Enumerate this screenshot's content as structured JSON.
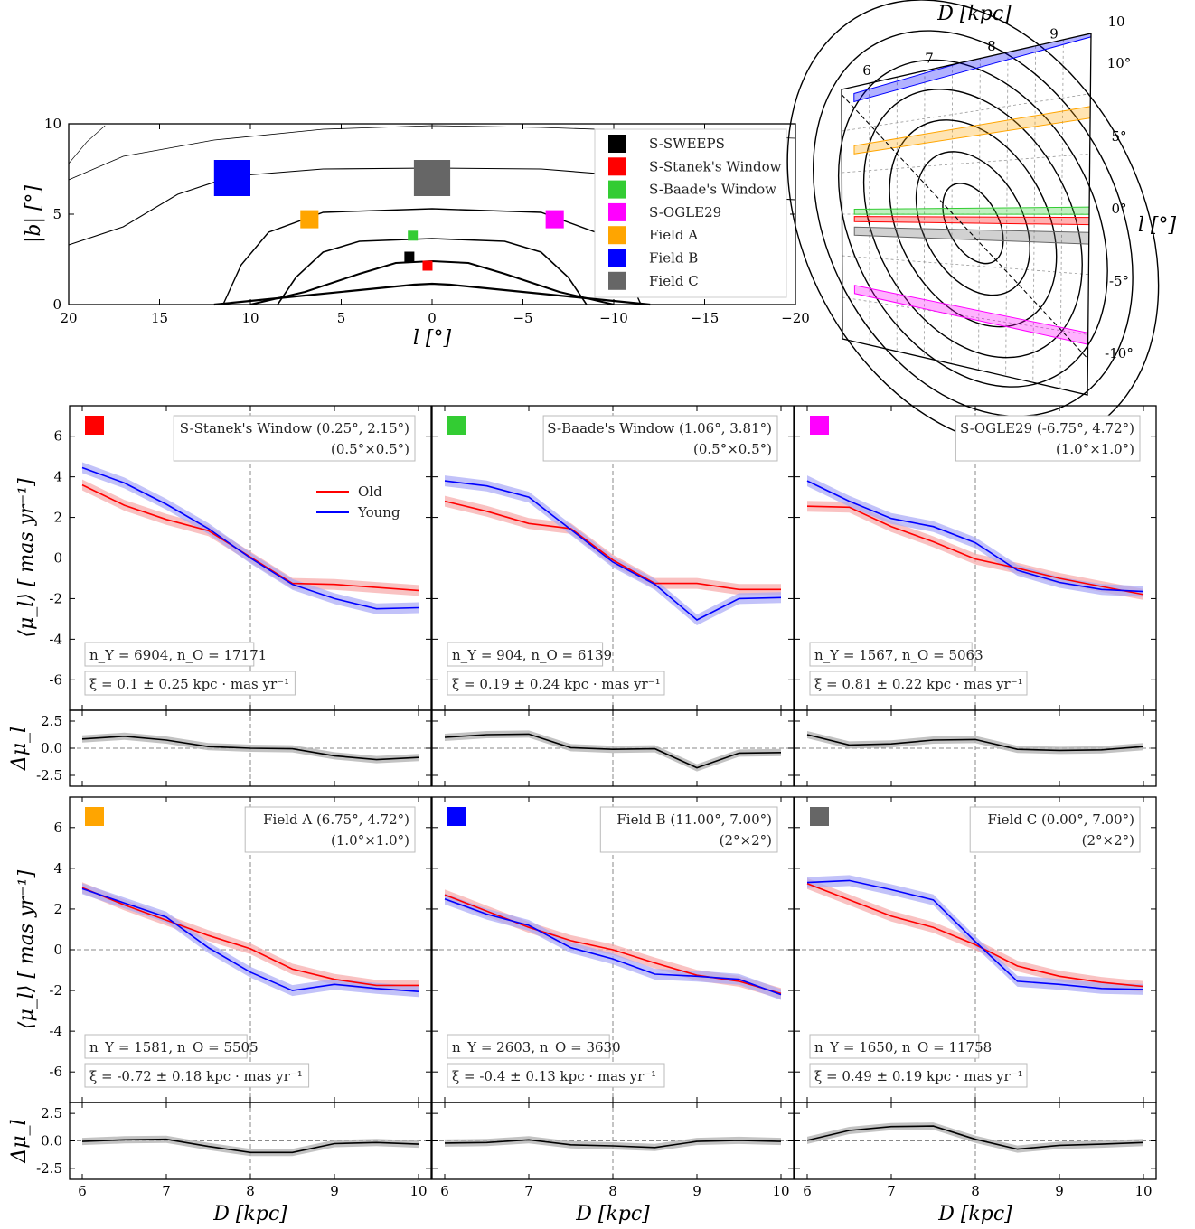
{
  "colors": {
    "old": "#ff0000",
    "young": "#0000ff",
    "diff": "#000000",
    "band_old": "#f7a8a8",
    "band_young": "#a8a8f7",
    "band_diff": "#b4b4b4"
  },
  "chart_data": [
    {
      "id": "map",
      "type": "heatmap",
      "xlabel": "l [°]",
      "ylabel": "|b| [°]",
      "xlim": [
        20,
        -20
      ],
      "ylim": [
        0,
        10
      ],
      "xticks": [
        "20",
        "15",
        "10",
        "5",
        "0",
        "−5",
        "−10",
        "−15",
        "−20"
      ],
      "yticks": [
        "0",
        "5",
        "10"
      ],
      "legend": {
        "placement": "top-right",
        "entries": [
          {
            "label": "S-SWEEPS",
            "color": "#000000"
          },
          {
            "label": "S-Stanek's Window",
            "color": "#ff0000"
          },
          {
            "label": "S-Baade's Window",
            "color": "#33cc33"
          },
          {
            "label": "S-OGLE29",
            "color": "#ff00ff"
          },
          {
            "label": "Field A",
            "color": "#ffa500"
          },
          {
            "label": "Field B",
            "color": "#0000ff"
          },
          {
            "label": "Field C",
            "color": "#666666"
          }
        ]
      },
      "fields": [
        {
          "name": "S-SWEEPS",
          "l": 1.25,
          "b": 2.65,
          "size": 0.5,
          "color": "#000000"
        },
        {
          "name": "S-Stanek's Window",
          "l": 0.25,
          "b": 2.15,
          "size": 0.5,
          "color": "#ff0000"
        },
        {
          "name": "S-Baade's Window",
          "l": 1.06,
          "b": 3.81,
          "size": 0.5,
          "color": "#33cc33"
        },
        {
          "name": "S-OGLE29",
          "l": -6.75,
          "b": 4.72,
          "size": 1.0,
          "color": "#ff00ff"
        },
        {
          "name": "Field A",
          "l": 6.75,
          "b": 4.72,
          "size": 1.0,
          "color": "#ffa500"
        },
        {
          "name": "Field B",
          "l": 11.0,
          "b": 7.0,
          "size": 2.0,
          "color": "#0000ff"
        },
        {
          "name": "Field C",
          "l": 0.0,
          "b": 7.0,
          "size": 2.0,
          "color": "#666666"
        }
      ]
    },
    {
      "id": "projection",
      "type": "diagram",
      "top_label": "D [kpc]",
      "side_label": "l [°]",
      "top_ticks": [
        "6",
        "7",
        "8",
        "9",
        "10"
      ],
      "side_ticks": [
        "10°",
        "5°",
        "0°",
        "-5°",
        "-10°"
      ]
    },
    {
      "id": "panels",
      "type": "line",
      "x": [
        6,
        6.5,
        7,
        7.5,
        8,
        8.5,
        9,
        9.5,
        10
      ],
      "xlabel": "D [kpc]",
      "ylabel_top": "⟨μ_l⟩ [ mas yr⁻¹]",
      "ylabel_bottom": "Δμ_l",
      "ylim_top": [
        -7.5,
        7.5
      ],
      "ylim_bottom": [
        -3.5,
        3.5
      ],
      "legend": [
        "Old",
        "Young"
      ],
      "panels": [
        {
          "title": "S-Stanek's Window (0.25°, 2.15°)",
          "size": "(0.5°×0.5°)",
          "color": "#ff0000",
          "counts": "n_Y = 6904, n_O = 17171",
          "xi": "ξ = 0.1 ± 0.25 kpc · mas yr⁻¹",
          "old": [
            3.6,
            2.6,
            1.9,
            1.35,
            0.05,
            -1.25,
            -1.3,
            -1.45,
            -1.6
          ],
          "young": [
            4.45,
            3.7,
            2.65,
            1.45,
            0.0,
            -1.3,
            -2.0,
            -2.5,
            -2.45
          ],
          "diff": [
            0.85,
            1.1,
            0.75,
            0.15,
            0.0,
            -0.05,
            -0.7,
            -1.05,
            -0.85
          ]
        },
        {
          "title": "S-Baade's Window (1.06°, 3.81°)",
          "size": "(0.5°×0.5°)",
          "color": "#33cc33",
          "counts": "n_Y = 904, n_O = 6139",
          "xi": "ξ = 0.19 ± 0.24 kpc · mas yr⁻¹",
          "old": [
            2.8,
            2.3,
            1.7,
            1.45,
            -0.1,
            -1.25,
            -1.25,
            -1.55,
            -1.55
          ],
          "young": [
            3.8,
            3.55,
            3.0,
            1.4,
            -0.2,
            -1.3,
            -3.05,
            -2.0,
            -1.95
          ],
          "diff": [
            1.0,
            1.25,
            1.3,
            0.05,
            -0.1,
            -0.05,
            -1.8,
            -0.45,
            -0.4
          ]
        },
        {
          "title": "S-OGLE29 (-6.75°, 4.72°)",
          "size": "(1.0°×1.0°)",
          "color": "#ff00ff",
          "counts": "n_Y = 1567, n_O = 5063",
          "xi": "ξ = 0.81 ± 0.22 kpc · mas yr⁻¹",
          "old": [
            2.55,
            2.5,
            1.55,
            0.8,
            -0.05,
            -0.5,
            -1.0,
            -1.4,
            -1.8
          ],
          "young": [
            3.8,
            2.8,
            1.95,
            1.55,
            0.75,
            -0.6,
            -1.2,
            -1.55,
            -1.65
          ],
          "diff": [
            1.25,
            0.3,
            0.4,
            0.75,
            0.8,
            -0.1,
            -0.2,
            -0.15,
            0.15
          ]
        },
        {
          "title": "Field A (6.75°, 4.72°)",
          "size": "(1.0°×1.0°)",
          "color": "#ffa500",
          "counts": "n_Y = 1581, n_O = 5505",
          "xi": "ξ = -0.72 ± 0.18 kpc · mas yr⁻¹",
          "old": [
            3.05,
            2.2,
            1.45,
            0.7,
            0.05,
            -0.95,
            -1.45,
            -1.75,
            -1.75
          ],
          "young": [
            3.0,
            2.3,
            1.6,
            0.1,
            -1.1,
            -2.0,
            -1.7,
            -1.9,
            -2.05
          ],
          "diff": [
            -0.05,
            0.1,
            0.15,
            -0.5,
            -1.05,
            -1.05,
            -0.25,
            -0.15,
            -0.3
          ]
        },
        {
          "title": "Field B (11.00°, 7.00°)",
          "size": "(2°×2°)",
          "color": "#0000ff",
          "counts": "n_Y = 2603, n_O = 3630",
          "xi": "ξ = -0.4 ± 0.13 kpc · mas yr⁻¹",
          "old": [
            2.7,
            1.9,
            1.1,
            0.45,
            0.0,
            -0.65,
            -1.25,
            -1.55,
            -2.15
          ],
          "young": [
            2.5,
            1.75,
            1.2,
            0.1,
            -0.45,
            -1.2,
            -1.3,
            -1.45,
            -2.2
          ],
          "diff": [
            -0.2,
            -0.15,
            0.1,
            -0.35,
            -0.45,
            -0.6,
            -0.05,
            0.05,
            -0.05
          ]
        },
        {
          "title": "Field C (0.00°, 7.00°)",
          "size": "(2°×2°)",
          "color": "#666666",
          "counts": "n_Y = 1650, n_O = 11758",
          "xi": "ξ = 0.49 ± 0.19 kpc · mas yr⁻¹",
          "old": [
            3.25,
            2.45,
            1.65,
            1.1,
            0.25,
            -0.8,
            -1.3,
            -1.6,
            -1.8
          ],
          "young": [
            3.3,
            3.4,
            2.95,
            2.45,
            0.4,
            -1.55,
            -1.7,
            -1.9,
            -1.95
          ],
          "diff": [
            0.05,
            0.95,
            1.3,
            1.35,
            0.15,
            -0.75,
            -0.4,
            -0.3,
            -0.15
          ]
        }
      ]
    }
  ]
}
